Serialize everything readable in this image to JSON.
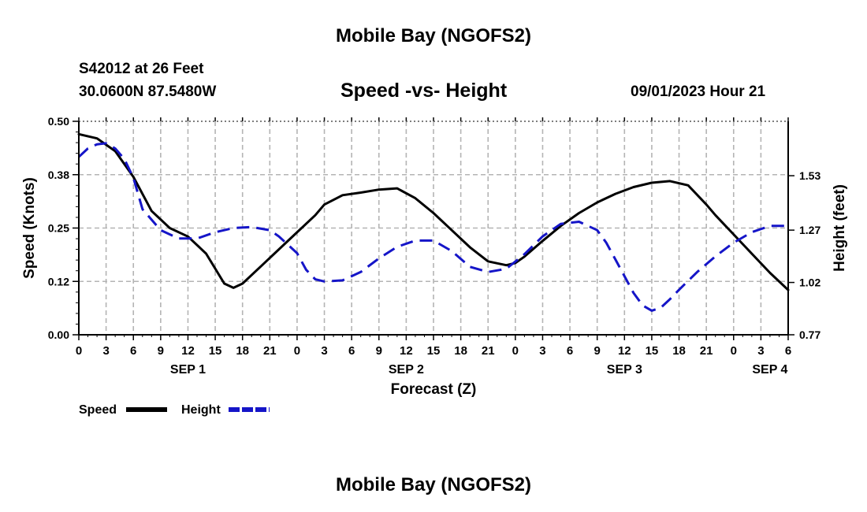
{
  "page": {
    "top_title": "Mobile Bay (NGOFS2)",
    "bottom_title": "Mobile Bay (NGOFS2)",
    "station_line": "S42012 at 26 Feet",
    "coords_line": "30.0600N  87.5480W",
    "subtitle": "Speed -vs- Height",
    "datetime": "09/01/2023 Hour 21"
  },
  "colors": {
    "speed": "#000000",
    "height": "#1515c8",
    "grid": "#b4b4b4",
    "dotted": "#555555"
  },
  "chart_data": {
    "type": "line",
    "title": "Speed -vs- Height",
    "xlabel": "Forecast (Z)",
    "ylabel": "Speed (Knots)",
    "y2label": "Height (feet)",
    "xlim": [
      0,
      78
    ],
    "ylim": [
      0,
      0.5
    ],
    "y2lim": [
      0.77,
      1.79
    ],
    "x_tick_step_hours": 3,
    "x_tick_labels": [
      "0",
      "3",
      "6",
      "9",
      "12",
      "15",
      "18",
      "21",
      "0",
      "3",
      "6",
      "9",
      "12",
      "15",
      "18",
      "21",
      "0",
      "3",
      "6",
      "9",
      "12",
      "15",
      "18",
      "21",
      "0",
      "3",
      "6"
    ],
    "day_labels": [
      {
        "hour": 12,
        "label": "SEP 1"
      },
      {
        "hour": 36,
        "label": "SEP 2"
      },
      {
        "hour": 60,
        "label": "SEP 3"
      },
      {
        "hour": 76,
        "label": "SEP 4"
      }
    ],
    "y_ticks": [
      0.0,
      0.125,
      0.25,
      0.375,
      0.5
    ],
    "y_tick_labels": [
      "0.00",
      "0.12",
      "0.25",
      "0.38",
      "0.50"
    ],
    "y2_ticks": [
      0.77,
      1.02,
      1.27,
      1.53
    ],
    "y2_tick_labels": [
      "0.77",
      "1.02",
      "1.27",
      "1.53"
    ],
    "grid": true,
    "series": [
      {
        "name": "Speed",
        "axis": "left",
        "style": "solid",
        "x": [
          0,
          2,
          4,
          6,
          8,
          10,
          12,
          14,
          16,
          17,
          18,
          20,
          22,
          24,
          26,
          27,
          29,
          31,
          33,
          35,
          37,
          39,
          41,
          43,
          45,
          47,
          48,
          49,
          51,
          53,
          55,
          57,
          59,
          61,
          63,
          65,
          67,
          69,
          70,
          72,
          74,
          76,
          78
        ],
        "values": [
          0.47,
          0.46,
          0.43,
          0.37,
          0.29,
          0.25,
          0.23,
          0.19,
          0.12,
          0.11,
          0.12,
          0.16,
          0.2,
          0.24,
          0.28,
          0.305,
          0.327,
          0.333,
          0.34,
          0.343,
          0.32,
          0.285,
          0.245,
          0.205,
          0.172,
          0.163,
          0.168,
          0.183,
          0.22,
          0.255,
          0.285,
          0.31,
          0.33,
          0.346,
          0.356,
          0.36,
          0.35,
          0.305,
          0.28,
          0.235,
          0.19,
          0.145,
          0.105
        ]
      },
      {
        "name": "Height",
        "axis": "right",
        "style": "dashed",
        "x": [
          0,
          1,
          2,
          3,
          4,
          5,
          6,
          7,
          9,
          11,
          13,
          15,
          17,
          19,
          21,
          22,
          24,
          25,
          26,
          27,
          29,
          31,
          33,
          35,
          37,
          39,
          41,
          43,
          45,
          47,
          49,
          51,
          53,
          55,
          57,
          58,
          59,
          60,
          61,
          62,
          63,
          64,
          65,
          66,
          68,
          70,
          72,
          74,
          76,
          78
        ],
        "values": [
          1.62,
          1.66,
          1.68,
          1.685,
          1.66,
          1.61,
          1.52,
          1.37,
          1.27,
          1.23,
          1.23,
          1.26,
          1.28,
          1.285,
          1.27,
          1.24,
          1.16,
          1.08,
          1.035,
          1.025,
          1.03,
          1.07,
          1.135,
          1.19,
          1.22,
          1.22,
          1.17,
          1.095,
          1.07,
          1.085,
          1.155,
          1.24,
          1.3,
          1.31,
          1.27,
          1.21,
          1.13,
          1.05,
          0.97,
          0.91,
          0.885,
          0.9,
          0.94,
          0.985,
          1.07,
          1.145,
          1.21,
          1.26,
          1.29,
          1.29
        ]
      }
    ],
    "legend": [
      {
        "name": "Speed",
        "color": "#000000",
        "style": "solid"
      },
      {
        "name": "Height",
        "color": "#1515c8",
        "style": "dashed"
      }
    ],
    "legend_position": "bottom-left"
  }
}
